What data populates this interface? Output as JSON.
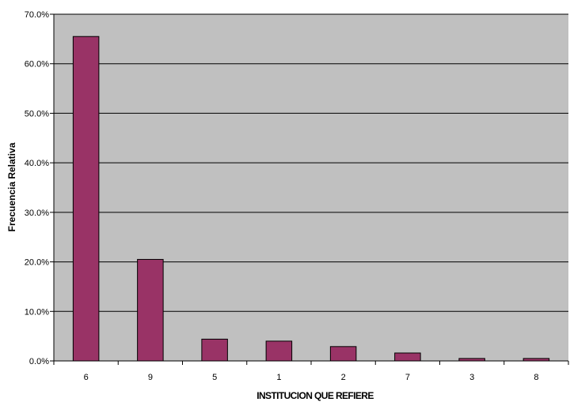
{
  "chart_data": {
    "type": "bar",
    "title": "",
    "xlabel": "INSTITUCION QUE REFIERE",
    "ylabel": "Frecuencia Relativa",
    "categories": [
      "6",
      "9",
      "5",
      "1",
      "2",
      "7",
      "3",
      "8"
    ],
    "values": [
      65.5,
      20.5,
      4.4,
      4.0,
      2.9,
      1.6,
      0.5,
      0.5
    ],
    "ylim": [
      0,
      70
    ],
    "ytick_step": 10,
    "ytick_format": "percent_one_decimal",
    "grid": true,
    "legend": "none",
    "colors": {
      "bar_fill": "#993366",
      "bar_stroke": "#000000",
      "plot_background": "#c0c0c0",
      "gridline": "#000000"
    }
  }
}
